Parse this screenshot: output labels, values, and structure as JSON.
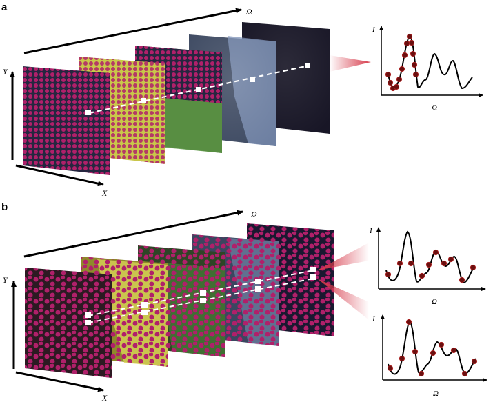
{
  "panels": [
    {
      "id": "a",
      "label": "a",
      "axis_labels": {
        "depth": "Ω",
        "y": "Y",
        "x": "X"
      },
      "spectra": [
        {
          "ylabel": "I",
          "xlabel": "Ω",
          "samples": "dense-around-first-peak"
        }
      ]
    },
    {
      "id": "b",
      "label": "b",
      "axis_labels": {
        "depth": "Ω",
        "y": "Y",
        "x": "X"
      },
      "spectra": [
        {
          "ylabel": "I",
          "xlabel": "Ω",
          "samples": "sparse-across-spectrum"
        },
        {
          "ylabel": "I",
          "xlabel": "Ω",
          "samples": "sparse-across-spectrum"
        }
      ]
    }
  ],
  "colors": {
    "mask_dot": "#b0206a",
    "grid_background": "#262640",
    "selected_pixel": "#ffffff",
    "light_cone": "#d63a4a",
    "tint_yellow": "#c9c64a",
    "tint_green": "#4d8a3a",
    "tint_blue": "#7f93b8",
    "tint_dark": "#181626"
  },
  "icons": [
    "dashed-line",
    "selected-pixel-marker",
    "light-cone"
  ]
}
